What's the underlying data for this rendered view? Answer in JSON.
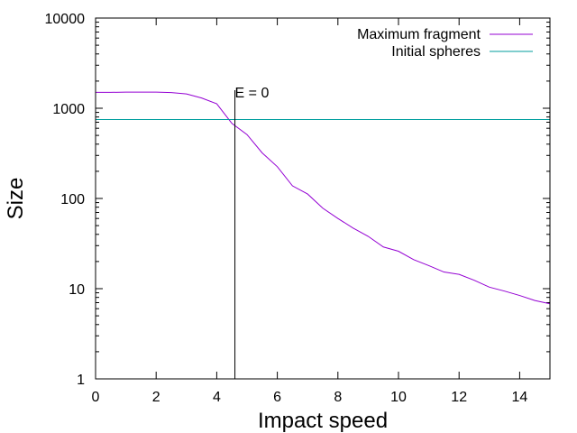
{
  "chart_data": {
    "type": "line",
    "title": "",
    "xlabel": "Impact speed",
    "ylabel": "Size",
    "xlim": [
      0,
      15
    ],
    "ylim": [
      1,
      10000
    ],
    "yscale": "log",
    "grid": false,
    "legend_position": "top-right",
    "x_ticks": [
      0,
      2,
      4,
      6,
      8,
      10,
      12,
      14
    ],
    "x_tick_labels": [
      "0",
      "2",
      "4",
      "6",
      "8",
      "10",
      "12",
      "14"
    ],
    "y_ticks": [
      1,
      10,
      100,
      1000,
      10000
    ],
    "y_tick_labels": [
      "1",
      "10",
      "100",
      "1000",
      "10000"
    ],
    "series": [
      {
        "name": "Maximum fragment",
        "color": "#9400d3",
        "x": [
          0,
          0.5,
          1,
          1.5,
          2,
          2.5,
          3,
          3.5,
          4,
          4.5,
          5,
          5.5,
          6,
          6.5,
          7,
          7.5,
          8,
          8.5,
          9,
          9.5,
          10,
          10.5,
          11,
          11.5,
          12,
          12.5,
          13,
          13.5,
          14,
          14.5,
          15
        ],
        "y": [
          1500,
          1500,
          1510,
          1510,
          1510,
          1490,
          1440,
          1300,
          1120,
          680,
          510,
          320,
          225,
          138,
          112,
          78,
          60,
          47,
          38,
          29,
          26,
          21,
          18,
          15.3,
          14.4,
          12.4,
          10.4,
          9.4,
          8.4,
          7.4,
          6.8
        ]
      },
      {
        "name": "Initial spheres",
        "color": "#009e9e",
        "constant": 750
      }
    ],
    "annotations": [
      {
        "text": "E = 0",
        "x": 4.6,
        "type": "vline",
        "color": "#000000"
      }
    ]
  }
}
